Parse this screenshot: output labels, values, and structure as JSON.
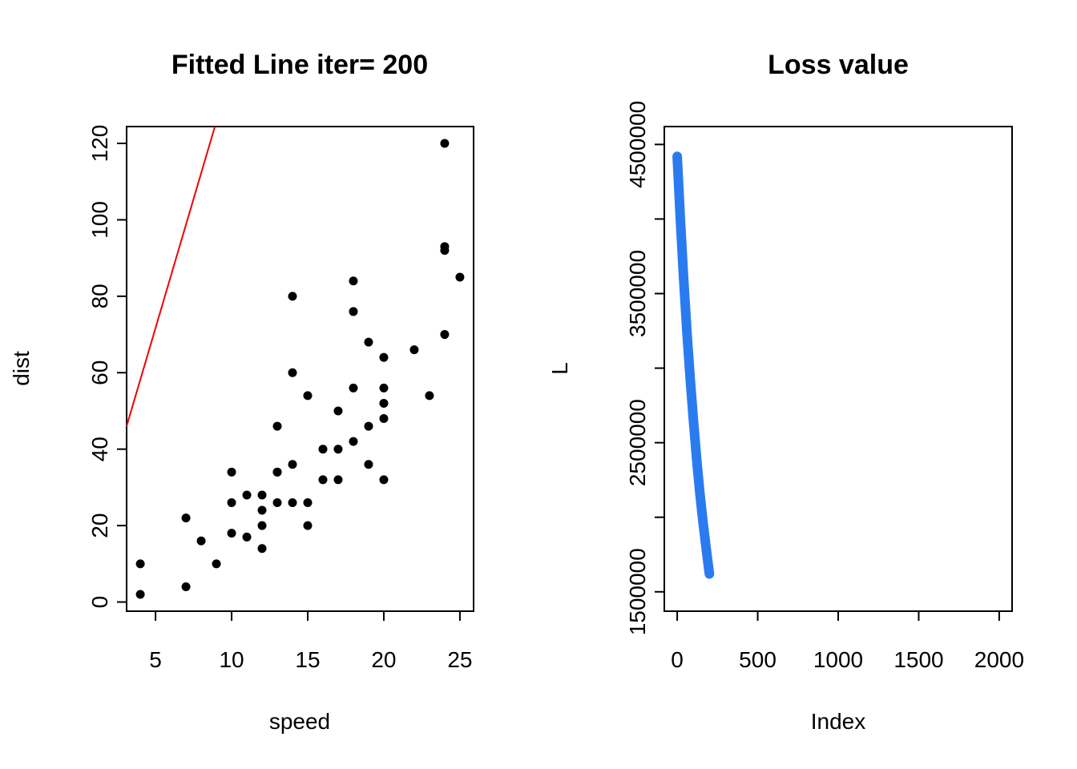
{
  "chart_data": [
    {
      "type": "scatter",
      "title": "Fitted Line iter= 200",
      "xlabel": "speed",
      "ylabel": "dist",
      "xlim": [
        3.1,
        25.9
      ],
      "ylim": [
        -2.4,
        124.4
      ],
      "xticks": [
        "5",
        "10",
        "15",
        "20",
        "25"
      ],
      "yticks": [
        "0",
        "20",
        "40",
        "60",
        "80",
        "100",
        "120"
      ],
      "point_color": "#000000",
      "line_color": "#ee0000",
      "fitted_line": {
        "x": [
          3.1,
          8.9
        ],
        "y": [
          46.0,
          124.4
        ]
      },
      "x": [
        4,
        4,
        7,
        7,
        8,
        9,
        10,
        10,
        10,
        11,
        11,
        12,
        12,
        12,
        12,
        13,
        13,
        13,
        13,
        14,
        14,
        14,
        14,
        15,
        15,
        15,
        16,
        16,
        17,
        17,
        17,
        18,
        18,
        18,
        18,
        19,
        19,
        19,
        20,
        20,
        20,
        20,
        20,
        22,
        23,
        24,
        24,
        24,
        24,
        25
      ],
      "y": [
        2,
        10,
        4,
        22,
        16,
        10,
        18,
        26,
        34,
        17,
        28,
        14,
        20,
        24,
        28,
        26,
        34,
        34,
        46,
        26,
        36,
        60,
        80,
        20,
        26,
        54,
        32,
        40,
        32,
        40,
        50,
        42,
        56,
        76,
        84,
        36,
        46,
        68,
        32,
        48,
        52,
        56,
        64,
        66,
        54,
        70,
        92,
        93,
        120,
        85
      ]
    },
    {
      "type": "line",
      "title": "Loss value",
      "xlabel": "Index",
      "ylabel": "L",
      "xlim": [
        -80,
        2080
      ],
      "ylim": [
        1370000,
        4620000
      ],
      "xticks": [
        "0",
        "500",
        "1000",
        "1500",
        "2000"
      ],
      "yticks": [
        "1500000",
        "2500000",
        "3500000",
        "4500000"
      ],
      "line_color": "#2a7bf0",
      "series": [
        {
          "x": [
            0,
            20,
            40,
            60,
            80,
            100,
            120,
            140,
            160,
            180,
            200
          ],
          "values": [
            4420000,
            3990000,
            3600000,
            3250000,
            2940000,
            2660000,
            2400000,
            2170000,
            1970000,
            1790000,
            1620000
          ]
        }
      ]
    }
  ]
}
